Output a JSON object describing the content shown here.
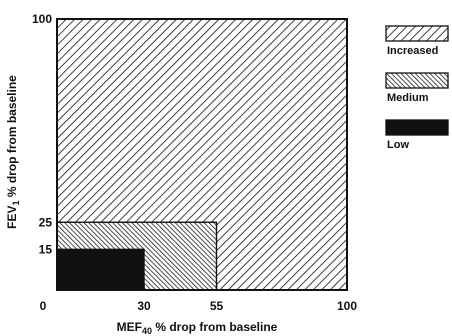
{
  "chart_data": {
    "type": "area",
    "xlabel": "MEF",
    "xlabel_sub": "40",
    "xlabel_rest": " % drop from baseline",
    "ylabel": "FEV",
    "ylabel_sub": "1",
    "ylabel_rest": " % drop from baseline",
    "xlim": [
      0,
      100
    ],
    "ylim": [
      0,
      100
    ],
    "x_ticks": [
      {
        "value": 0,
        "label": "0"
      },
      {
        "value": 30,
        "label": "30"
      },
      {
        "value": 55,
        "label": "55"
      },
      {
        "value": 100,
        "label": "100"
      }
    ],
    "y_ticks": [
      {
        "value": 15,
        "label": "15"
      },
      {
        "value": 25,
        "label": "25"
      },
      {
        "value": 100,
        "label": "100"
      }
    ],
    "regions": [
      {
        "name": "Increased",
        "x": [
          0,
          100
        ],
        "y": [
          0,
          100
        ],
        "pattern": "wide-diagonal"
      },
      {
        "name": "Medium",
        "x": [
          0,
          55
        ],
        "y": [
          0,
          25
        ],
        "pattern": "dense-diagonal"
      },
      {
        "name": "Low",
        "x": [
          0,
          30
        ],
        "y": [
          0,
          15
        ],
        "pattern": "solid"
      }
    ],
    "legend": {
      "placement": "right",
      "entries": [
        {
          "label": "Increased",
          "pattern": "wide-diagonal"
        },
        {
          "label": "Medium",
          "pattern": "dense-diagonal"
        },
        {
          "label": "Low",
          "pattern": "solid"
        }
      ]
    },
    "colors": {
      "ink": "#111111",
      "background": "#ffffff"
    }
  }
}
